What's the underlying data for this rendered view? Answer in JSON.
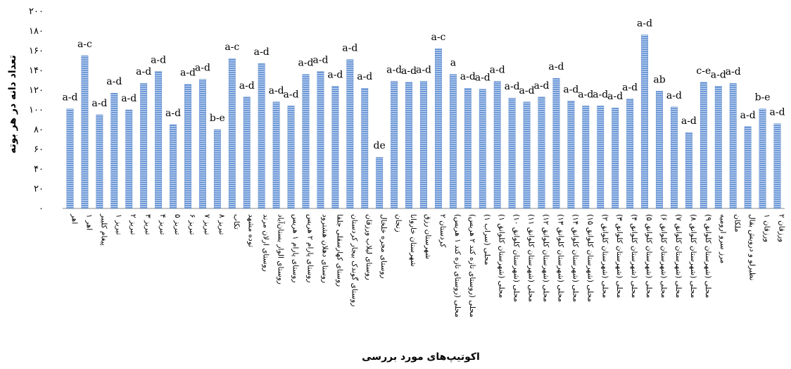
{
  "chart_data": {
    "type": "bar",
    "title": "",
    "xlabel": "اکوتیپ‌های مورد بررسی",
    "ylabel": "تعداد دانه در هر بوته",
    "ylim": [
      0,
      200
    ],
    "yticks": [
      0,
      20,
      40,
      60,
      80,
      100,
      120,
      140,
      160,
      180,
      200
    ],
    "ytick_labels": [
      "۰",
      "۲۰",
      "۴۰",
      "۶۰",
      "۸۰",
      "۱۰۰",
      "۱۲۰",
      "۱۴۰",
      "۱۶۰",
      "۱۸۰",
      "۲۰۰"
    ],
    "grid": false,
    "legend": "none",
    "bar_color": "#5b8bd0",
    "categories": [
      "اهر",
      "اهر ۱",
      "پیغام کلیبر",
      "تبریز ۱",
      "تبریز ۲",
      "تبریز ۳",
      "تبریز ۴",
      "تبریز ۵",
      "تبریز ۶",
      "تبریز ۷",
      "تبریز ۸",
      "تکاب",
      "توده مشهد",
      "روستای ارلان مرند",
      "روستای الوار بستان‌آباد",
      "روستای پارام ۱ هریس",
      "روستای پارام ۲ هریس",
      "روستای دهلان هشترود",
      "روستای کهارسقلی جلفا",
      "روستای گوندک بیجار کردستان",
      "روستای لیلاب ورزقان",
      "روستای مجره خلخال",
      "زنجان",
      "شهرستان خاروانا",
      "شهرستان رزق",
      "کردستان ۲",
      "محلی (روستای تازه کند ۱ هریس)",
      "محلی (روستای تازه کند ۲ هریس)",
      "محلی (سراب ۱)",
      "محلی (شهرستان کلوانق ۱)",
      "محلی (شهرستان کلوانق ۱۰)",
      "محلی (شهرستان کلوانق ۱۱)",
      "محلی (شهرستان کلوانق ۱۲)",
      "محلی (شهرستان کلوانق ۱۳)",
      "محلی (شهرستان کلوانق ۱۴)",
      "محلی (شهرستان کلوانق ۱۵)",
      "محلی (شهرستان کلوانق ۲)",
      "محلی (شهرستان کلوانق ۳)",
      "محلی (شهرستان کلوانق ۴)",
      "محلی (شهرستان کلوانق ۵)",
      "محلی (شهرستان کلوانق ۶)",
      "محلی (شهرستان کلوانق ۷)",
      "محلی (شهرستان کلوانق ۸)",
      "محلی (شهرستان کلوانق ۹)",
      "مرز سرو ارومیه",
      "ملکان",
      "نظیرلو و درویش بقال",
      "ورزقان ۱",
      "ورزقان ۲"
    ],
    "values": [
      101,
      155,
      95,
      117,
      100,
      127,
      139,
      85,
      126,
      131,
      80,
      152,
      113,
      147,
      108,
      104,
      136,
      139,
      124,
      151,
      122,
      52,
      129,
      128,
      129,
      162,
      136,
      122,
      121,
      129,
      112,
      108,
      113,
      132,
      109,
      104,
      104,
      102,
      111,
      176,
      119,
      103,
      77,
      128,
      124,
      127,
      83,
      101,
      86
    ],
    "significance_labels": [
      "a-d",
      "a-c",
      "a-d",
      "a-d",
      "a-d",
      "a-d",
      "a-d",
      "a-d",
      "a-d",
      "a-d",
      "b-e",
      "a-c",
      "a-d",
      "a-d",
      "a-d",
      "a-d",
      "a-d",
      "a-d",
      "a-d",
      "a-d",
      "a-d",
      "de",
      "a-d",
      "a-d",
      "a-d",
      "a-c",
      "a",
      "a-d",
      "a-d",
      "a-d",
      "a-d",
      "a-d",
      "a-d",
      "a-d",
      "a-d",
      "a-d",
      "a-d",
      "a-d",
      "a-d",
      "a-d",
      "ab",
      "a-d",
      "a-d",
      "c-e",
      "a-d",
      "a-d",
      "a-d",
      "b-e",
      "a-d"
    ]
  }
}
